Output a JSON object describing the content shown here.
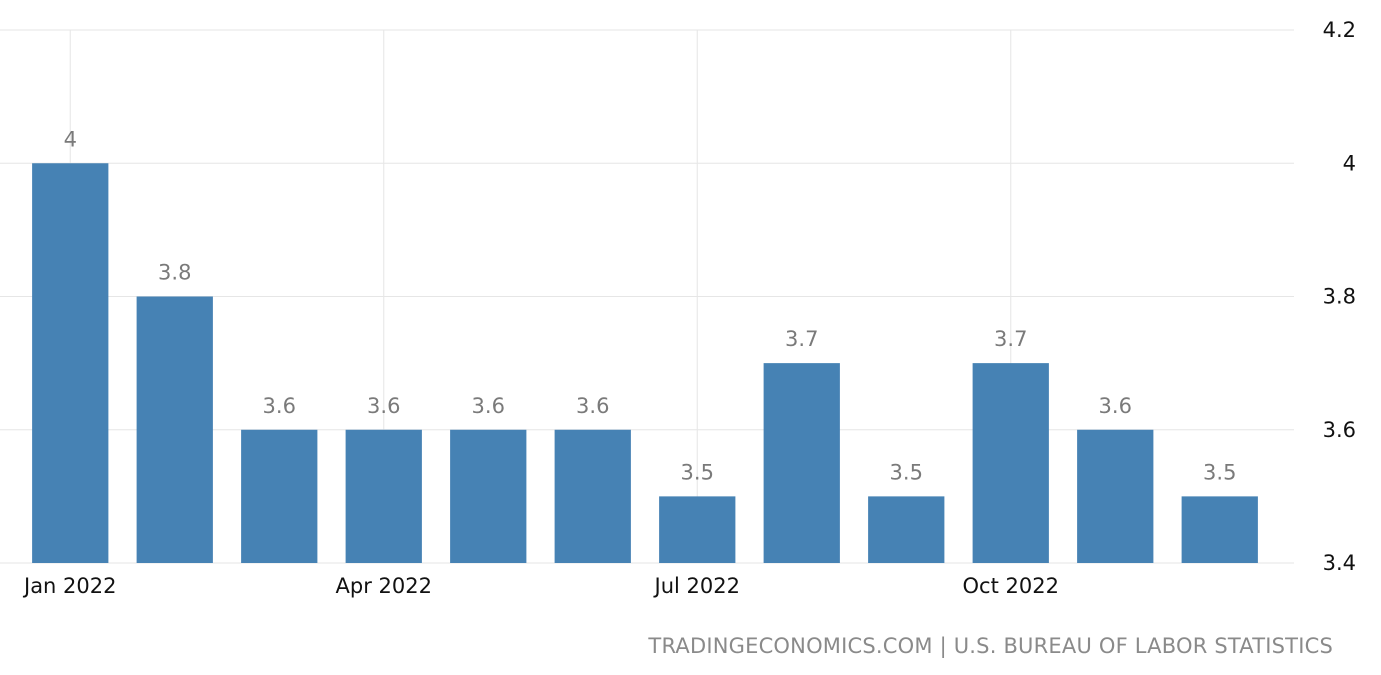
{
  "chart_data": {
    "type": "bar",
    "categories": [
      "Jan 2022",
      "Feb 2022",
      "Mar 2022",
      "Apr 2022",
      "May 2022",
      "Jun 2022",
      "Jul 2022",
      "Aug 2022",
      "Sep 2022",
      "Oct 2022",
      "Nov 2022",
      "Dec 2022"
    ],
    "values": [
      4,
      3.8,
      3.6,
      3.6,
      3.6,
      3.6,
      3.5,
      3.7,
      3.5,
      3.7,
      3.6,
      3.5
    ],
    "data_labels": [
      "4",
      "3.8",
      "3.6",
      "3.6",
      "3.6",
      "3.6",
      "3.5",
      "3.7",
      "3.5",
      "3.7",
      "3.6",
      "3.5"
    ],
    "x_tick_labels": [
      {
        "label": "Jan 2022",
        "category": "Jan 2022"
      },
      {
        "label": "Apr 2022",
        "category": "Apr 2022"
      },
      {
        "label": "Jul 2022",
        "category": "Jul 2022"
      },
      {
        "label": "Oct 2022",
        "category": "Oct 2022"
      }
    ],
    "y_ticks": [
      3.4,
      3.6,
      3.8,
      4,
      4.2
    ],
    "y_tick_labels": [
      "3.4",
      "3.6",
      "3.8",
      "4",
      "4.2"
    ],
    "ylim": [
      3.4,
      4.2
    ],
    "y_axis_side": "right",
    "grid": true,
    "bar_color": "#4682b4",
    "title": "",
    "xlabel": "",
    "ylabel": ""
  },
  "footer": {
    "source": "TRADINGECONOMICS.COM | U.S. BUREAU OF LABOR STATISTICS"
  }
}
